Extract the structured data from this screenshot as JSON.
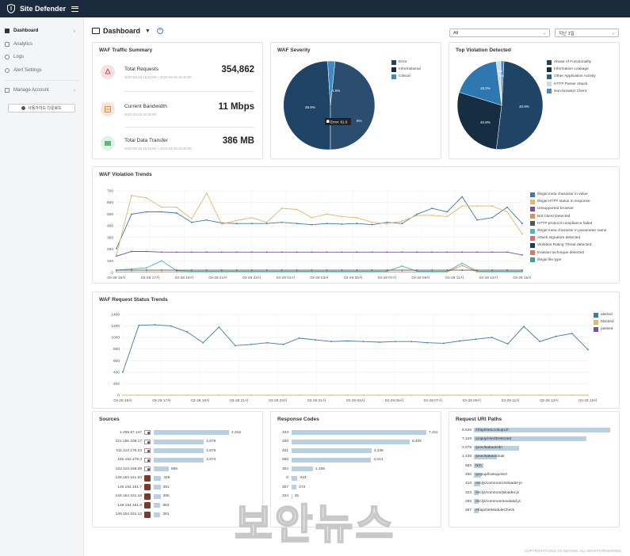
{
  "app": {
    "title": "Site Defender"
  },
  "sidebar": {
    "items": [
      {
        "label": "Dashboard",
        "active": true
      },
      {
        "label": "Analytics"
      },
      {
        "label": "Logs"
      },
      {
        "label": "Alert Settings"
      },
      {
        "label": "Manage Account"
      }
    ],
    "guide_button": "사용가이드 다운로드"
  },
  "header": {
    "title": "Dashboard",
    "filter_all": "All",
    "filter_period": "지난 1일"
  },
  "traffic": {
    "title": "WAF Traffic Summary",
    "items": [
      {
        "label": "Total Requests",
        "date": "2022-03-28 15:40:00 ~ 2022-03-29 15:40:00",
        "value": "354,862",
        "icon": "share-icon",
        "color": "#f8e1e1"
      },
      {
        "label": "Current Bandwidth",
        "date": "2022-03-29 15:30:00",
        "value": "11 Mbps",
        "icon": "server-icon",
        "color": "#fbe6d6"
      },
      {
        "label": "Total Data Transfer",
        "date": "2022-03-28 15:40:00 ~ 2022-03-29 15:40:00",
        "value": "386 MB",
        "icon": "transfer-icon",
        "color": "#dff2e6"
      }
    ]
  },
  "severity": {
    "title": "WAF Severity",
    "legend": [
      {
        "name": "Error",
        "color": "#1f4466"
      },
      {
        "name": "Informational",
        "color": "#162d42"
      },
      {
        "name": "Critical",
        "color": "#3d8ac4"
      }
    ],
    "labels": {
      "a": "1.5%",
      "b": "36.9%",
      "c": "6%"
    },
    "tooltip": "Error: 61.6"
  },
  "top_violation": {
    "title": "Top Violation Detected",
    "legend": [
      {
        "name": "Abuse of Functionality",
        "color": "#1f4466"
      },
      {
        "name": "Information Leakage",
        "color": "#162d42"
      },
      {
        "name": "Other Application Activity",
        "color": "#2e5f86"
      },
      {
        "name": "HTTP Parser Attack",
        "color": "#c9dde9"
      },
      {
        "name": "Non-browser Client",
        "color": "#4a8cc2"
      }
    ],
    "labels": {
      "a": "40.9%",
      "b": "40.8%",
      "c": "15.2%",
      "d": "2%",
      "e": "1%"
    }
  },
  "trends": {
    "title": "WAF Violation Trends",
    "yticks": [
      "700",
      "600",
      "500",
      "400",
      "300",
      "200",
      "100",
      "0"
    ],
    "xticks": [
      "03-28 15시",
      "03-28 17시",
      "03-28 19시",
      "03-28 21시",
      "03-28 23시",
      "03-29 01시",
      "03-29 03시",
      "03-29 05시",
      "03-29 07시",
      "03-29 09시",
      "03-29 11시",
      "03-29 13시",
      "03-29 15시"
    ],
    "legend": [
      {
        "name": "Illegal meta character in value",
        "color": "#3b7ca8"
      },
      {
        "name": "Illegal HTTP status in response",
        "color": "#e3b866"
      },
      {
        "name": "Unsupported browser",
        "color": "#7a4fa0"
      },
      {
        "name": "Bot Client Detected",
        "color": "#e28d4e"
      },
      {
        "name": "HTTP protocol compliance failed",
        "color": "#555555"
      },
      {
        "name": "Illegal meta character in parameter name",
        "color": "#4cb8b0"
      },
      {
        "name": "Attack signature detected",
        "color": "#e06a6a"
      },
      {
        "name": "Violation Rating Threat detected",
        "color": "#1f3a5a"
      },
      {
        "name": "Evasion technique detected",
        "color": "#d77a5a"
      },
      {
        "name": "Illegal file type",
        "color": "#3aa38a"
      }
    ]
  },
  "status": {
    "title": "WAF Request Status Trends",
    "yticks": [
      "1400",
      "1200",
      "1000",
      "800",
      "600",
      "400",
      "200",
      "0"
    ],
    "xticks": [
      "03-28 15시",
      "03-28 17시",
      "03-28 19시",
      "03-28 21시",
      "03-28 23시",
      "03-29 01시",
      "03-29 03시",
      "03-29 05시",
      "03-29 07시",
      "03-29 09시",
      "03-29 11시",
      "03-29 13시",
      "03-29 15시"
    ],
    "legend": [
      {
        "name": "alerted",
        "color": "#3b7ca8"
      },
      {
        "name": "blocked",
        "color": "#e3b866"
      },
      {
        "name": "passed",
        "color": "#7a4fa0"
      }
    ]
  },
  "sources": {
    "title": "Sources",
    "rows": [
      {
        "ip": "1.255.57.147",
        "value": 4316,
        "label": "4,316",
        "flag": "kr"
      },
      {
        "ip": "121.156.109.17",
        "value": 2876,
        "label": "2,876",
        "flag": "kr"
      },
      {
        "ip": "211.110.175.23",
        "value": 2876,
        "label": "2,876",
        "flag": "kr"
      },
      {
        "ip": "182.162.178.3",
        "value": 2874,
        "label": "2,874",
        "flag": "kr"
      },
      {
        "ip": "222.110.168.39",
        "value": 865,
        "label": "865",
        "flag": "kr"
      },
      {
        "ip": "149.154.161.20",
        "value": 428,
        "label": "428",
        "flag": "av"
      },
      {
        "ip": "149.154.161.7",
        "value": 391,
        "label": "391",
        "flag": "av"
      },
      {
        "ip": "149.154.161.16",
        "value": 390,
        "label": "390",
        "flag": "av"
      },
      {
        "ip": "149.154.161.9",
        "value": 383,
        "label": "383",
        "flag": "av"
      },
      {
        "ip": "149.154.161.12",
        "value": 381,
        "label": "381",
        "flag": "av"
      }
    ]
  },
  "codes": {
    "title": "Response Codes",
    "rows": [
      {
        "code": "403",
        "value": 7311,
        "label": "7,311"
      },
      {
        "code": "200",
        "value": 6405,
        "label": "6,405"
      },
      {
        "code": "401",
        "value": 4336,
        "label": "4,336"
      },
      {
        "code": "500",
        "value": 4314,
        "label": "4,314"
      },
      {
        "code": "304",
        "value": 1158,
        "label": "1,158"
      },
      {
        "code": "0",
        "value": 313,
        "label": "313"
      },
      {
        "code": "307",
        "value": 272,
        "label": "272"
      },
      {
        "code": "404",
        "value": 25,
        "label": "25"
      }
    ]
  },
  "uris": {
    "title": "Request URI Paths",
    "rows": [
      {
        "count": "8,626",
        "value": 8626,
        "path": "/rtfapi/setLookupUrl"
      },
      {
        "count": "7,129",
        "value": 7129,
        "path": "/popup/AlertDetected"
      },
      {
        "count": "2,879",
        "value": 2879,
        "path": "/proc/kakao/cdn"
      },
      {
        "count": "1,436",
        "value": 1436,
        "path": "/proc/kakao/onair"
      },
      {
        "count": "583",
        "value": 583,
        "path": "N/A"
      },
      {
        "count": "450",
        "value": 450,
        "path": "/popup/lookupAlert"
      },
      {
        "count": "416",
        "value": 416,
        "path": "/src/js/common/cssloader.js"
      },
      {
        "count": "323",
        "value": 323,
        "path": "/src/js/common/jsloader.js"
      },
      {
        "count": "289",
        "value": 289,
        "path": "/src/js/common/nexdataf.js"
      },
      {
        "count": "287",
        "value": 287,
        "path": "/rtfapi/setModuleCheck"
      }
    ]
  },
  "footer": {
    "copyright": "COPYRIGHT©2021 GS NEOTEK. ALL RIGHTS RESERVED."
  },
  "watermark": {
    "text": "보안뉴스"
  }
}
